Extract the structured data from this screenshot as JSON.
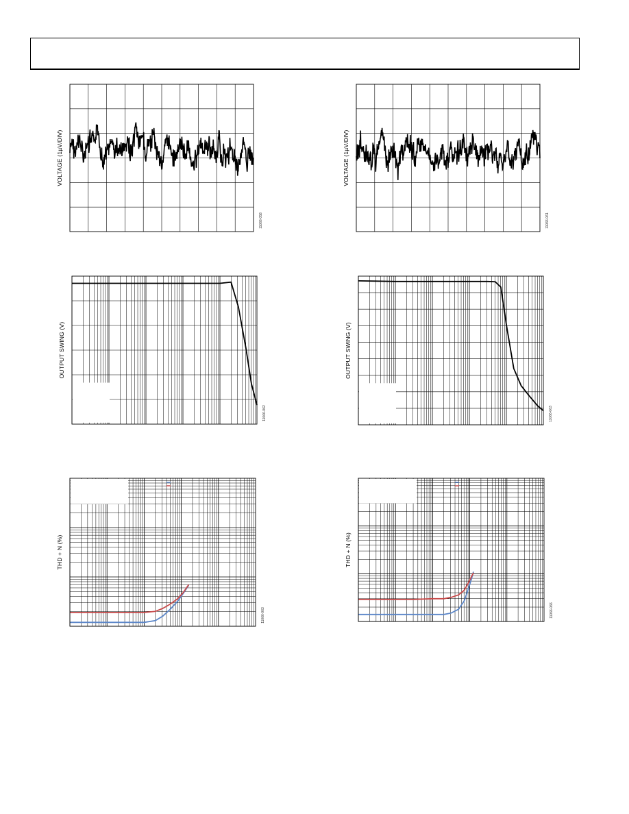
{
  "header": {
    "title": ""
  },
  "colors": {
    "ink": "#000000",
    "grid": "#000000",
    "series_blue": "#5b86c8",
    "series_red": "#c84a4a"
  },
  "figures": [
    {
      "id": "noise-left",
      "ylabel": "VOLTAGE (1µV/DIV)",
      "fig_id": "11066-058",
      "chart_data": {
        "type": "line",
        "title": "",
        "xlabel": "",
        "ylabel": "VOLTAGE (1µV/DIV)",
        "xdivs": 10,
        "ydivs": 6,
        "grid": true,
        "seed": 7,
        "description_series": "noise trace"
      }
    },
    {
      "id": "noise-right",
      "ylabel": "VOLTAGE (1µV/DIV)",
      "fig_id": "11066-061",
      "chart_data": {
        "type": "line",
        "title": "",
        "xlabel": "",
        "ylabel": "VOLTAGE (1µV/DIV)",
        "xdivs": 10,
        "ydivs": 6,
        "grid": true,
        "seed": 13
      }
    },
    {
      "id": "swing-left",
      "ylabel": "OUTPUT SWING (V)",
      "fig_id": "11066-062",
      "chart_data": {
        "type": "line",
        "xscale": "log",
        "decades": 5,
        "ydivs": 6,
        "grid": true,
        "x": [
          0,
          0.5,
          1,
          1.5,
          2,
          2.5,
          3,
          3.5,
          4,
          4.3,
          4.5,
          4.7,
          4.85,
          5.0
        ],
        "y": [
          5.9,
          5.9,
          5.9,
          5.9,
          5.9,
          5.9,
          5.9,
          5.9,
          5.9,
          5.95,
          4.9,
          3.2,
          1.7,
          0.8
        ],
        "ylim": [
          0,
          6.2
        ]
      }
    },
    {
      "id": "swing-right",
      "ylabel": "OUTPUT SWING (V)",
      "fig_id": "11066-063",
      "chart_data": {
        "type": "line",
        "xscale": "log",
        "decades": 5,
        "ydivs": 9,
        "grid": true,
        "x": [
          0,
          0.5,
          1,
          1.5,
          2,
          2.5,
          3,
          3.5,
          3.7,
          3.85,
          4.0,
          4.2,
          4.4,
          4.6,
          4.85,
          5.0
        ],
        "y": [
          9.2,
          9.18,
          9.16,
          9.16,
          9.16,
          9.16,
          9.16,
          9.16,
          9.14,
          8.8,
          6.4,
          3.6,
          2.5,
          1.9,
          1.2,
          0.9
        ],
        "ylim": [
          0,
          9.5
        ]
      }
    },
    {
      "id": "thd-left",
      "ylabel": "THD + N (%)",
      "fig_id": "11066-063",
      "chart_data": {
        "type": "line",
        "xscale": "log",
        "yscale": "log",
        "grid": true,
        "series": [
          {
            "color": "#5b86c8",
            "x": [
              0,
              0.5,
              1,
              1.5,
              2,
              2.3,
              2.5,
              2.7,
              2.9,
              3.05,
              3.2
            ],
            "y": [
              0.0012,
              0.0012,
              0.0012,
              0.0012,
              0.0012,
              0.0013,
              0.0016,
              0.0022,
              0.0032,
              0.0046,
              0.0068
            ]
          },
          {
            "color": "#c84a4a",
            "x": [
              0,
              0.5,
              1,
              1.5,
              2,
              2.3,
              2.5,
              2.7,
              2.9,
              3.05,
              3.2
            ],
            "y": [
              0.0019,
              0.0019,
              0.0019,
              0.0019,
              0.0019,
              0.002,
              0.0023,
              0.0028,
              0.0036,
              0.0048,
              0.007
            ]
          }
        ]
      }
    },
    {
      "id": "thd-right",
      "ylabel": "THD + N (%)",
      "fig_id": "11066-066",
      "chart_data": {
        "type": "line",
        "xscale": "log",
        "yscale": "log",
        "grid": true,
        "series": [
          {
            "color": "#5b86c8",
            "x": [
              0,
              0.5,
              1,
              1.5,
              2,
              2.3,
              2.5,
              2.7,
              2.85,
              2.95,
              3.05,
              3.1
            ],
            "y": [
              0.0014,
              0.0014,
              0.0014,
              0.0014,
              0.0014,
              0.0014,
              0.0015,
              0.0018,
              0.0027,
              0.0045,
              0.008,
              0.011
            ]
          },
          {
            "color": "#c84a4a",
            "x": [
              0,
              0.5,
              1,
              1.5,
              2,
              2.3,
              2.5,
              2.7,
              2.85,
              2.95,
              3.05,
              3.1
            ],
            "y": [
              0.0029,
              0.0029,
              0.0029,
              0.0029,
              0.003,
              0.003,
              0.0032,
              0.0036,
              0.0045,
              0.0062,
              0.0088,
              0.0105
            ]
          }
        ]
      }
    }
  ]
}
